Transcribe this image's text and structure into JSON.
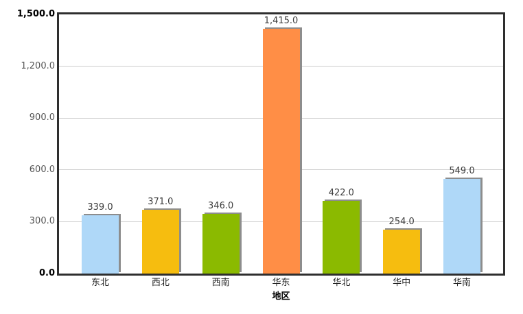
{
  "chart_data": {
    "type": "bar",
    "title": "",
    "xlabel": "地区",
    "ylabel": "",
    "categories": [
      "东北",
      "西北",
      "西南",
      "华东",
      "华北",
      "华中",
      "华南"
    ],
    "values": [
      339.0,
      371.0,
      346.0,
      1415.0,
      422.0,
      254.0,
      549.0
    ],
    "value_labels": [
      "339.0",
      "371.0",
      "346.0",
      "1,415.0",
      "422.0",
      "254.0",
      "549.0"
    ],
    "bar_colors": [
      "#AFD8F8",
      "#F6BD0F",
      "#8BBA00",
      "#FF8E46",
      "#8BBA00",
      "#F6BD0F",
      "#AFD8F8"
    ],
    "ylim": [
      0,
      1500
    ],
    "yticks": [
      {
        "value": 0,
        "label": "0.0"
      },
      {
        "value": 300,
        "label": "300.0"
      },
      {
        "value": 600,
        "label": "600.0"
      },
      {
        "value": 900,
        "label": "900.0"
      },
      {
        "value": 1200,
        "label": "1,200.0"
      },
      {
        "value": 1500,
        "label": "1,500.0"
      }
    ],
    "grid": true,
    "legend": false
  },
  "style": {
    "gridline_color": "#cccccc",
    "frame_color": "#2e2e2e",
    "bar_shadow_color": "#8d8d8d",
    "tick_label_color": "#555555",
    "limit_label_color": "#000000",
    "value_label_color": "#3c3c3c",
    "background_color": "#ffffff"
  }
}
